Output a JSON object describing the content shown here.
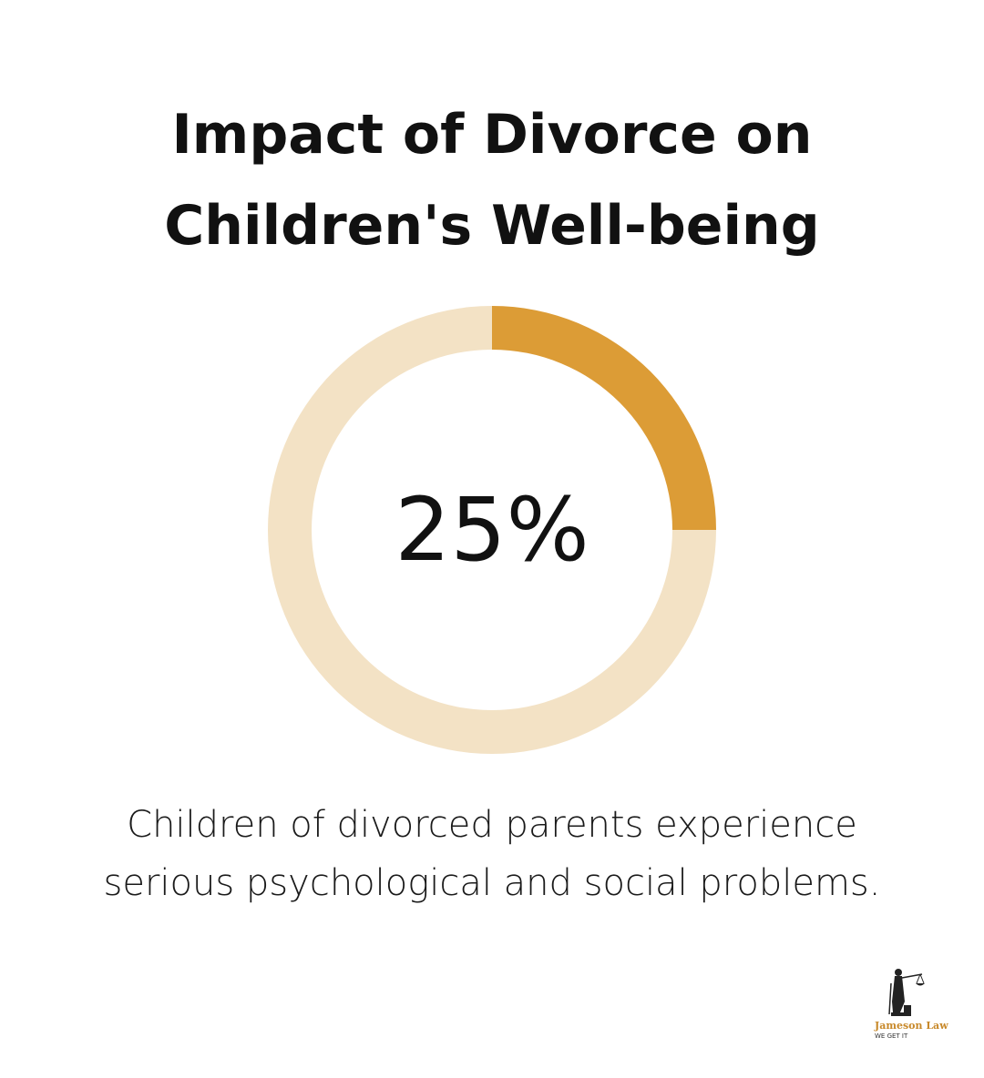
{
  "title_lines": [
    "Impact of Divorce on",
    "Children's Well-being"
  ],
  "chart_data": {
    "type": "pie",
    "values": [
      25,
      75
    ],
    "value_label": "25%",
    "colors": {
      "highlight": "#DC9C36",
      "track": "#F3E2C5"
    }
  },
  "caption_lines": [
    "Children of divorced parents experience",
    "serious psychological and social problems."
  ],
  "logo": {
    "name": "Jameson Law",
    "tagline": "WE GET IT",
    "icon": "lady-justice-icon"
  }
}
